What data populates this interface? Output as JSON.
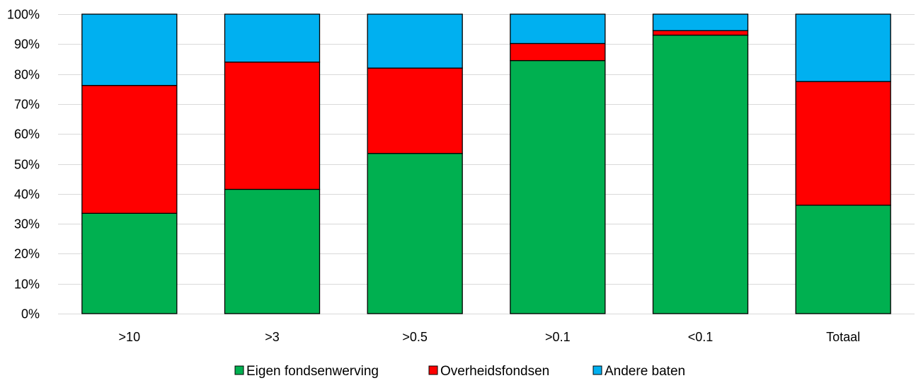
{
  "chart_data": {
    "type": "bar",
    "stacked": true,
    "categories": [
      ">10",
      ">3",
      ">0.5",
      ">0.1",
      "<0.1",
      "Totaal"
    ],
    "series": [
      {
        "name": "Eigen fondsenwerving",
        "color": "#00B050",
        "values": [
          33.5,
          41.5,
          53.5,
          84.5,
          93.0,
          36.2
        ]
      },
      {
        "name": "Overheidsfondsen",
        "color": "#FF0000",
        "values": [
          42.7,
          42.5,
          28.5,
          5.7,
          1.5,
          41.3
        ]
      },
      {
        "name": "Andere baten",
        "color": "#00B0F0",
        "values": [
          23.8,
          16.0,
          18.0,
          9.8,
          5.5,
          22.5
        ]
      }
    ],
    "ylim": [
      0,
      100
    ],
    "yticks": [
      "0%",
      "10%",
      "20%",
      "30%",
      "40%",
      "50%",
      "60%",
      "70%",
      "80%",
      "90%",
      "100%"
    ],
    "ytick_values": [
      0,
      10,
      20,
      30,
      40,
      50,
      60,
      70,
      80,
      90,
      100
    ],
    "grid": true,
    "legend_position": "bottom",
    "title": "",
    "xlabel": "",
    "ylabel": ""
  }
}
